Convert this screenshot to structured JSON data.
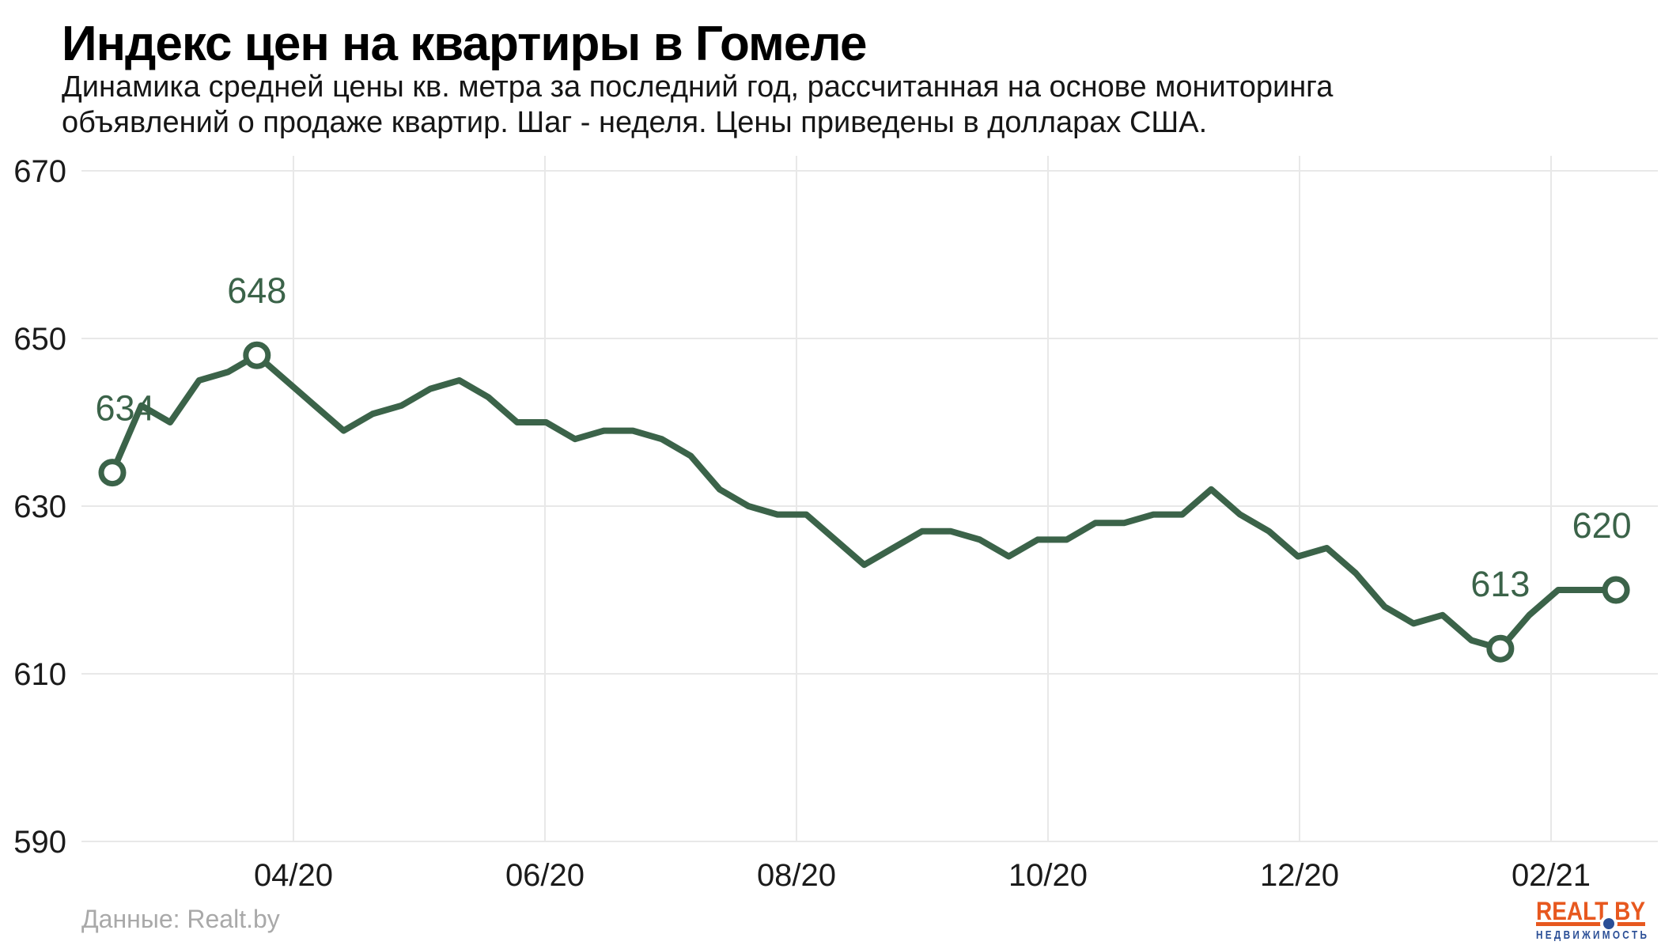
{
  "header": {
    "title": "Индекс цен на квартиры в Гомеле",
    "subtitle_line1": "Динамика средней цены кв. метра за последний год, рассчитанная на основе мониторинга",
    "subtitle_line2": "объявлений о продаже квартир. Шаг - неделя. Цены приведены в долларах США."
  },
  "footer": {
    "source": "Данные: Realt.by",
    "logo": {
      "brand": "REALT BY",
      "tagline": "Н Е Д В И Ж И М О С Т Ь"
    }
  },
  "colors": {
    "line": "#3B6349",
    "grid": "#e8e8e8",
    "axis_text": "#1b1b1b",
    "source_text": "#a9a9a9",
    "logo_orange": "#E7581F",
    "logo_blue": "#2A4E96",
    "background": "#ffffff"
  },
  "chart_data": {
    "type": "line",
    "title": "Индекс цен на квартиры в Гомеле",
    "step": "week",
    "x_tick_labels": [
      "04/20",
      "06/20",
      "08/20",
      "10/20",
      "12/20",
      "02/21"
    ],
    "y_tick_labels": [
      "670",
      "650",
      "630",
      "610",
      "590"
    ],
    "y_tick_values": [
      670,
      650,
      630,
      610,
      590
    ],
    "ylim": [
      584,
      674
    ],
    "grid": true,
    "legend": false,
    "values": [
      634,
      642,
      640,
      645,
      646,
      648,
      645,
      642,
      639,
      641,
      642,
      644,
      645,
      643,
      640,
      640,
      638,
      639,
      639,
      638,
      636,
      632,
      630,
      629,
      629,
      626,
      623,
      625,
      627,
      627,
      626,
      624,
      626,
      626,
      628,
      628,
      629,
      629,
      632,
      629,
      627,
      624,
      625,
      622,
      618,
      616,
      617,
      614,
      613,
      617,
      620,
      620,
      620
    ],
    "annotations": [
      {
        "index": 0,
        "label": "634",
        "value": 634
      },
      {
        "index": 5,
        "label": "648",
        "value": 648
      },
      {
        "index": 48,
        "label": "613",
        "value": 613
      },
      {
        "index": 52,
        "label": "620",
        "value": 620
      }
    ]
  }
}
